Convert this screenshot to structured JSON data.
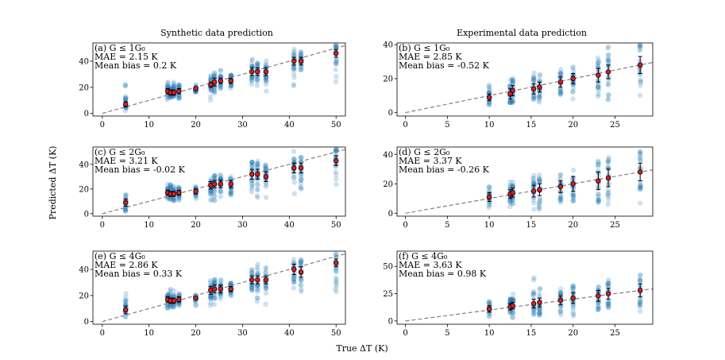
{
  "figure": {
    "col_titles": [
      "Synthetic data prediction",
      "Experimental data prediction"
    ],
    "xlabel": "True ΔT (K)",
    "ylabel": "Predicted ΔT (K)"
  },
  "colors": {
    "points": "#1f77b4",
    "mean_marker": "#e41a1c",
    "error_bar": "#000000",
    "diagonal": "#808080"
  },
  "chart_data": [
    {
      "type": "scatter",
      "panel": "(a)",
      "title": "",
      "annotation": [
        "(a) G ≤ 1G₀",
        "MAE = 2.15 K",
        "Mean bias = 0.2 K"
      ],
      "xlim": [
        -2,
        52
      ],
      "ylim": [
        -2,
        54
      ],
      "xticks": [
        0,
        10,
        20,
        30,
        40,
        50
      ],
      "yticks": [
        0,
        20,
        40
      ],
      "diagonal": true,
      "groups": [
        {
          "x": 5,
          "mean": 7,
          "err": 2,
          "min": 2,
          "max": 25
        },
        {
          "x": 14,
          "mean": 17,
          "err": 2,
          "min": 9,
          "max": 27
        },
        {
          "x": 14.6,
          "mean": 16,
          "err": 2,
          "min": 9,
          "max": 25
        },
        {
          "x": 15.3,
          "mean": 16,
          "err": 2,
          "min": 9,
          "max": 24
        },
        {
          "x": 16.4,
          "mean": 17,
          "err": 2,
          "min": 10,
          "max": 22
        },
        {
          "x": 20,
          "mean": 19,
          "err": 1,
          "min": 14,
          "max": 22
        },
        {
          "x": 23.2,
          "mean": 22,
          "err": 2,
          "min": 10,
          "max": 30
        },
        {
          "x": 24,
          "mean": 24,
          "err": 3,
          "min": 15,
          "max": 32
        },
        {
          "x": 25.3,
          "mean": 25,
          "err": 2,
          "min": 15,
          "max": 33
        },
        {
          "x": 27.5,
          "mean": 25,
          "err": 2,
          "min": 18,
          "max": 30
        },
        {
          "x": 32,
          "mean": 32,
          "err": 3,
          "min": 14,
          "max": 44
        },
        {
          "x": 33.2,
          "mean": 32,
          "err": 3,
          "min": 20,
          "max": 44
        },
        {
          "x": 35,
          "mean": 32,
          "err": 3,
          "min": 14,
          "max": 42
        },
        {
          "x": 41,
          "mean": 40,
          "err": 3,
          "min": 20,
          "max": 50
        },
        {
          "x": 42.5,
          "mean": 40,
          "err": 3,
          "min": 25,
          "max": 48
        },
        {
          "x": 50,
          "mean": 46,
          "err": 3,
          "min": 22,
          "max": 52
        }
      ]
    },
    {
      "type": "scatter",
      "panel": "(b)",
      "title": "",
      "annotation": [
        "(b) G ≤ 1G₀",
        "MAE = 2.85 K",
        "Mean bias = -0.52 K"
      ],
      "xlim": [
        -1,
        29.5
      ],
      "ylim": [
        -2,
        41
      ],
      "xticks": [
        0,
        5,
        10,
        15,
        20,
        25
      ],
      "yticks": [
        0,
        20,
        40
      ],
      "diagonal": true,
      "groups": [
        {
          "x": 10,
          "mean": 9,
          "err": 2,
          "min": 4,
          "max": 17
        },
        {
          "x": 12.5,
          "mean": 11,
          "err": 3,
          "min": 6,
          "max": 20
        },
        {
          "x": 12.8,
          "mean": 13,
          "err": 3,
          "min": 6,
          "max": 22
        },
        {
          "x": 15.3,
          "mean": 14,
          "err": 3,
          "min": 5,
          "max": 24
        },
        {
          "x": 16,
          "mean": 15,
          "err": 3,
          "min": 5,
          "max": 25
        },
        {
          "x": 18.5,
          "mean": 18,
          "err": 3,
          "min": 6,
          "max": 27
        },
        {
          "x": 20,
          "mean": 20,
          "err": 3,
          "min": 8,
          "max": 31
        },
        {
          "x": 23,
          "mean": 22,
          "err": 4,
          "min": 6,
          "max": 36
        },
        {
          "x": 24.2,
          "mean": 24,
          "err": 4,
          "min": 6,
          "max": 40
        },
        {
          "x": 28,
          "mean": 28,
          "err": 5,
          "min": 6,
          "max": 40
        }
      ]
    },
    {
      "type": "scatter",
      "panel": "(c)",
      "title": "",
      "annotation": [
        "(c) G ≤ 2G₀",
        "MAE = 3.21 K",
        "Mean bias = -0.02 K"
      ],
      "xlim": [
        -2,
        52
      ],
      "ylim": [
        -2,
        54
      ],
      "xticks": [
        0,
        10,
        20,
        30,
        40,
        50
      ],
      "yticks": [
        0,
        20,
        40
      ],
      "diagonal": true,
      "groups": [
        {
          "x": 5,
          "mean": 9,
          "err": 3,
          "min": 2,
          "max": 17
        },
        {
          "x": 14,
          "mean": 17,
          "err": 2,
          "min": 9,
          "max": 25
        },
        {
          "x": 14.6,
          "mean": 16,
          "err": 2,
          "min": 9,
          "max": 25
        },
        {
          "x": 15.3,
          "mean": 16,
          "err": 2,
          "min": 9,
          "max": 24
        },
        {
          "x": 16.4,
          "mean": 17,
          "err": 2,
          "min": 10,
          "max": 24
        },
        {
          "x": 20,
          "mean": 18,
          "err": 2,
          "min": 12,
          "max": 22
        },
        {
          "x": 23.2,
          "mean": 23,
          "err": 3,
          "min": 8,
          "max": 32
        },
        {
          "x": 24,
          "mean": 24,
          "err": 3,
          "min": 10,
          "max": 32
        },
        {
          "x": 25.3,
          "mean": 24,
          "err": 3,
          "min": 10,
          "max": 33
        },
        {
          "x": 27.5,
          "mean": 24,
          "err": 3,
          "min": 15,
          "max": 30
        },
        {
          "x": 32,
          "mean": 32,
          "err": 4,
          "min": 10,
          "max": 45
        },
        {
          "x": 33.2,
          "mean": 32,
          "err": 4,
          "min": 10,
          "max": 44
        },
        {
          "x": 35,
          "mean": 30,
          "err": 4,
          "min": 10,
          "max": 40
        },
        {
          "x": 41,
          "mean": 37,
          "err": 4,
          "min": 15,
          "max": 52
        },
        {
          "x": 42.5,
          "mean": 37,
          "err": 4,
          "min": 15,
          "max": 50
        },
        {
          "x": 50,
          "mean": 43,
          "err": 4,
          "min": 20,
          "max": 52
        }
      ]
    },
    {
      "type": "scatter",
      "panel": "(d)",
      "title": "",
      "annotation": [
        "(d) G ≤ 2G₀",
        "MAE = 3.37 K",
        "Mean bias = -0.26 K"
      ],
      "xlim": [
        -1,
        29.5
      ],
      "ylim": [
        -2,
        45
      ],
      "xticks": [
        0,
        5,
        10,
        15,
        20,
        25
      ],
      "yticks": [
        0,
        20,
        40
      ],
      "diagonal": true,
      "groups": [
        {
          "x": 10,
          "mean": 11,
          "err": 3,
          "min": 3,
          "max": 21
        },
        {
          "x": 12.5,
          "mean": 13,
          "err": 3,
          "min": 3,
          "max": 24
        },
        {
          "x": 12.8,
          "mean": 14,
          "err": 3,
          "min": 3,
          "max": 25
        },
        {
          "x": 15.3,
          "mean": 15,
          "err": 4,
          "min": 2,
          "max": 27
        },
        {
          "x": 16,
          "mean": 16,
          "err": 4,
          "min": 2,
          "max": 28
        },
        {
          "x": 18.5,
          "mean": 18,
          "err": 4,
          "min": 3,
          "max": 30
        },
        {
          "x": 20,
          "mean": 20,
          "err": 5,
          "min": 3,
          "max": 33
        },
        {
          "x": 23,
          "mean": 22,
          "err": 6,
          "min": 3,
          "max": 37
        },
        {
          "x": 24.2,
          "mean": 24,
          "err": 6,
          "min": 3,
          "max": 40
        },
        {
          "x": 28,
          "mean": 28,
          "err": 6,
          "min": 3,
          "max": 43
        }
      ]
    },
    {
      "type": "scatter",
      "panel": "(e)",
      "title": "",
      "annotation": [
        "(e) G ≤ 4G₀",
        "MAE = 2.86 K",
        "Mean bias = 0.33 K"
      ],
      "xlim": [
        -2,
        52
      ],
      "ylim": [
        -2,
        54
      ],
      "xticks": [
        0,
        10,
        20,
        30,
        40,
        50
      ],
      "yticks": [
        0,
        20,
        40
      ],
      "diagonal": true,
      "groups": [
        {
          "x": 5,
          "mean": 9,
          "err": 3,
          "min": 2,
          "max": 22
        },
        {
          "x": 14,
          "mean": 17,
          "err": 2,
          "min": 8,
          "max": 27
        },
        {
          "x": 14.6,
          "mean": 16,
          "err": 2,
          "min": 8,
          "max": 25
        },
        {
          "x": 15.3,
          "mean": 16,
          "err": 2,
          "min": 8,
          "max": 24
        },
        {
          "x": 16.4,
          "mean": 17,
          "err": 2,
          "min": 10,
          "max": 22
        },
        {
          "x": 20,
          "mean": 18,
          "err": 1,
          "min": 12,
          "max": 22
        },
        {
          "x": 23.2,
          "mean": 24,
          "err": 3,
          "min": 10,
          "max": 32
        },
        {
          "x": 24,
          "mean": 25,
          "err": 3,
          "min": 12,
          "max": 33
        },
        {
          "x": 25.3,
          "mean": 25,
          "err": 3,
          "min": 12,
          "max": 33
        },
        {
          "x": 27.5,
          "mean": 25,
          "err": 2,
          "min": 18,
          "max": 30
        },
        {
          "x": 32,
          "mean": 32,
          "err": 3,
          "min": 12,
          "max": 45
        },
        {
          "x": 33.2,
          "mean": 32,
          "err": 3,
          "min": 14,
          "max": 44
        },
        {
          "x": 35,
          "mean": 32,
          "err": 3,
          "min": 12,
          "max": 42
        },
        {
          "x": 41,
          "mean": 40,
          "err": 4,
          "min": 20,
          "max": 52
        },
        {
          "x": 42.5,
          "mean": 38,
          "err": 4,
          "min": 22,
          "max": 50
        },
        {
          "x": 50,
          "mean": 45,
          "err": 3,
          "min": 22,
          "max": 52
        }
      ]
    },
    {
      "type": "scatter",
      "panel": "(f)",
      "title": "",
      "annotation": [
        "(f) G ≤ 4G₀",
        "MAE = 3.63 K",
        "Mean bias = 0.98 K"
      ],
      "xlim": [
        -1,
        29.5
      ],
      "ylim": [
        -3,
        64
      ],
      "xticks": [
        0,
        5,
        10,
        15,
        20,
        25
      ],
      "yticks": [
        0,
        25,
        50
      ],
      "diagonal": true,
      "groups": [
        {
          "x": 10,
          "mean": 11,
          "err": 3,
          "min": 3,
          "max": 22
        },
        {
          "x": 12.5,
          "mean": 13,
          "err": 3,
          "min": 3,
          "max": 25
        },
        {
          "x": 12.8,
          "mean": 14,
          "err": 3,
          "min": 3,
          "max": 26
        },
        {
          "x": 15.3,
          "mean": 16,
          "err": 4,
          "min": 3,
          "max": 58
        },
        {
          "x": 16,
          "mean": 17,
          "err": 4,
          "min": 3,
          "max": 30
        },
        {
          "x": 18.5,
          "mean": 19,
          "err": 4,
          "min": 3,
          "max": 32
        },
        {
          "x": 20,
          "mean": 21,
          "err": 5,
          "min": 3,
          "max": 34
        },
        {
          "x": 23,
          "mean": 23,
          "err": 5,
          "min": 3,
          "max": 36
        },
        {
          "x": 24.2,
          "mean": 25,
          "err": 5,
          "min": 3,
          "max": 38
        },
        {
          "x": 28,
          "mean": 28,
          "err": 6,
          "min": 3,
          "max": 42
        }
      ]
    }
  ]
}
